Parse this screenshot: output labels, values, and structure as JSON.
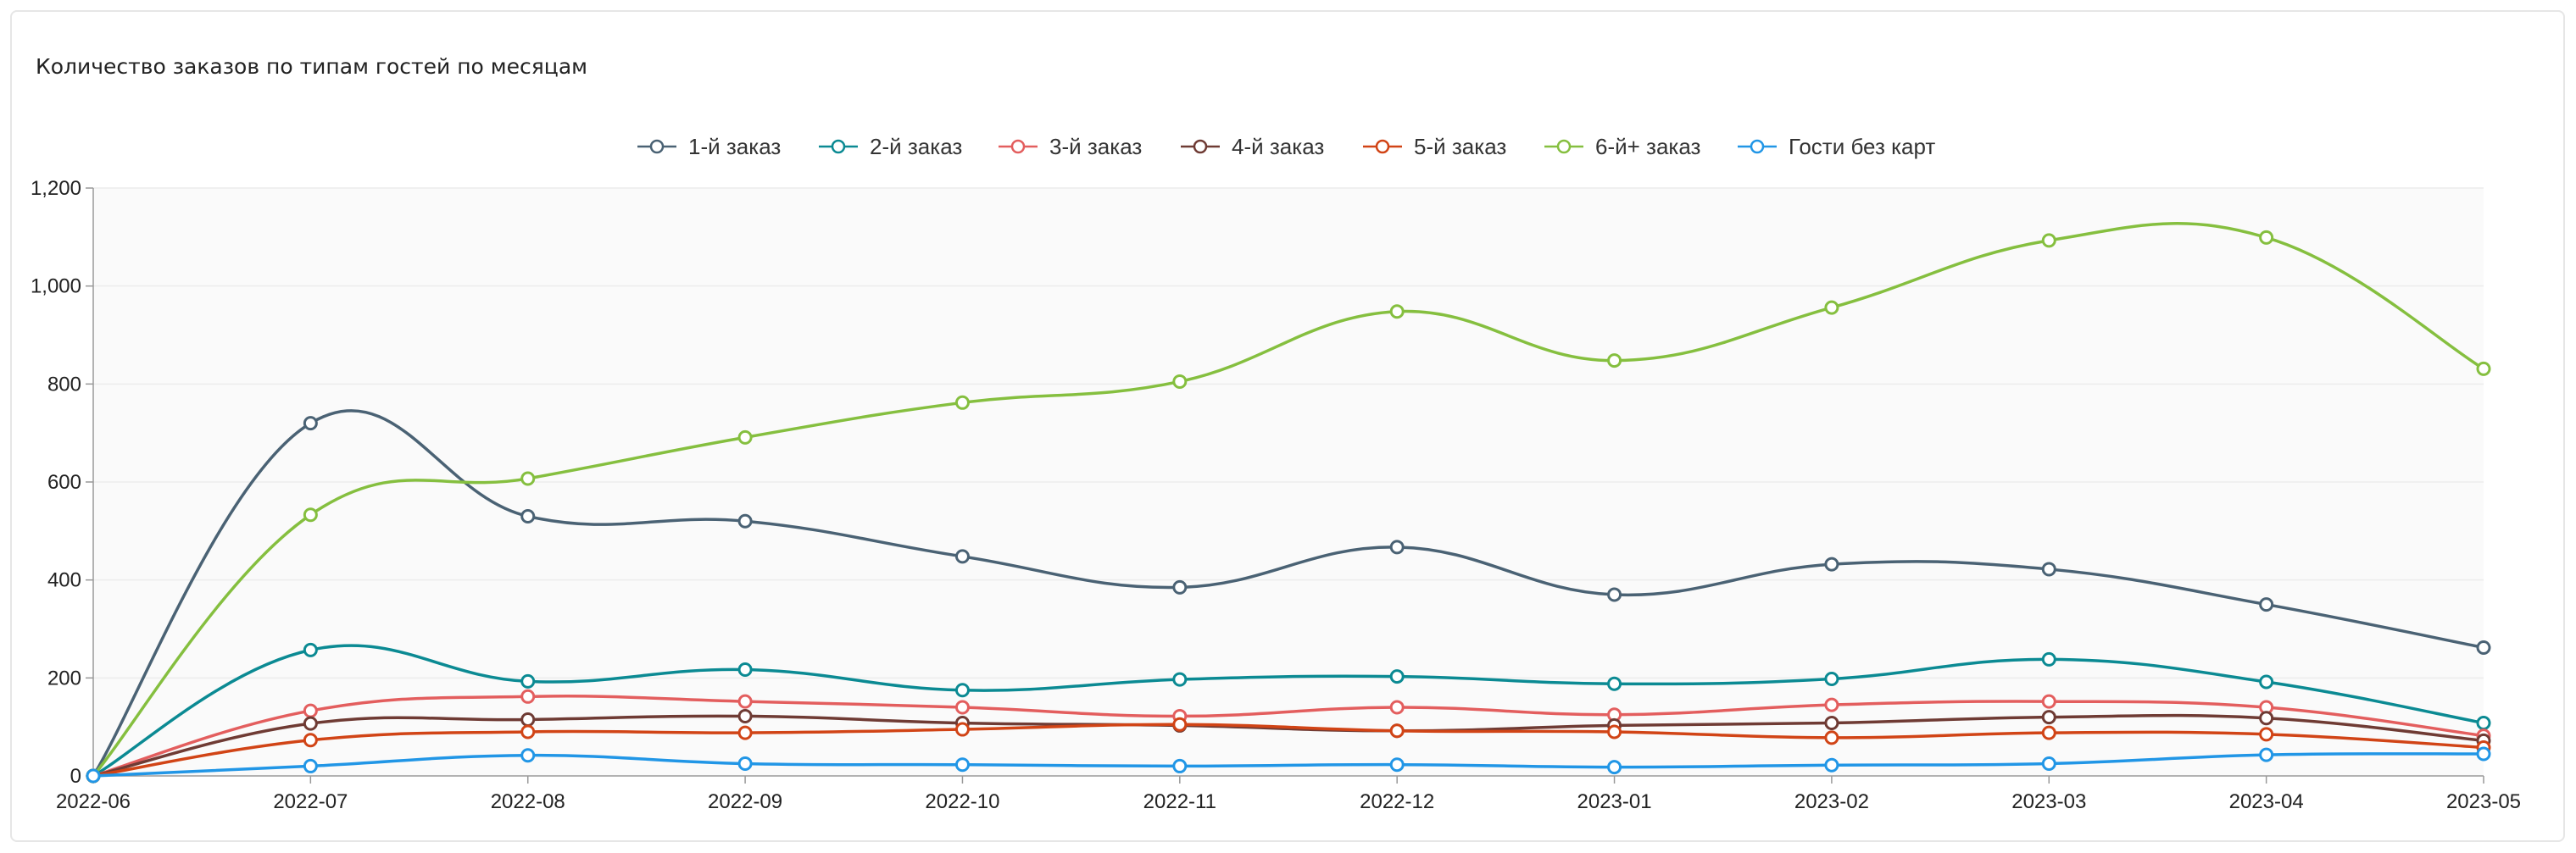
{
  "chart_data": {
    "type": "line",
    "title": "Количество заказов по типам гостей по месяцам",
    "categories": [
      "2022-06",
      "2022-07",
      "2022-08",
      "2022-09",
      "2022-10",
      "2022-11",
      "2022-12",
      "2023-01",
      "2023-02",
      "2023-03",
      "2023-04",
      "2023-05"
    ],
    "y_ticks": [
      "0",
      "200",
      "400",
      "600",
      "800",
      "1,000",
      "1,200"
    ],
    "ylim": [
      0,
      1200
    ],
    "grid": true,
    "legend_position": "top-center",
    "series": [
      {
        "name": "1-й заказ",
        "color": "#4a6274",
        "values": [
          0,
          720,
          530,
          520,
          448,
          385,
          467,
          370,
          432,
          422,
          350,
          262
        ]
      },
      {
        "name": "2-й заказ",
        "color": "#0b8a93",
        "values": [
          0,
          257,
          193,
          217,
          175,
          197,
          203,
          188,
          198,
          238,
          192,
          108
        ]
      },
      {
        "name": "3-й заказ",
        "color": "#e35e5e",
        "values": [
          0,
          133,
          162,
          152,
          140,
          122,
          140,
          125,
          145,
          152,
          140,
          82
        ]
      },
      {
        "name": "4-й заказ",
        "color": "#6f3b34",
        "values": [
          0,
          107,
          115,
          122,
          108,
          103,
          92,
          103,
          108,
          120,
          118,
          72
        ]
      },
      {
        "name": "5-й заказ",
        "color": "#d14416",
        "values": [
          0,
          73,
          90,
          88,
          95,
          105,
          92,
          90,
          78,
          88,
          85,
          58
        ]
      },
      {
        "name": "6-й+ заказ",
        "color": "#85bf3f",
        "values": [
          0,
          533,
          607,
          691,
          762,
          805,
          948,
          848,
          956,
          1093,
          1099,
          831
        ]
      },
      {
        "name": "Гости без карт",
        "color": "#2196e6",
        "values": [
          0,
          20,
          42,
          25,
          23,
          20,
          23,
          18,
          22,
          25,
          43,
          45
        ]
      }
    ]
  }
}
